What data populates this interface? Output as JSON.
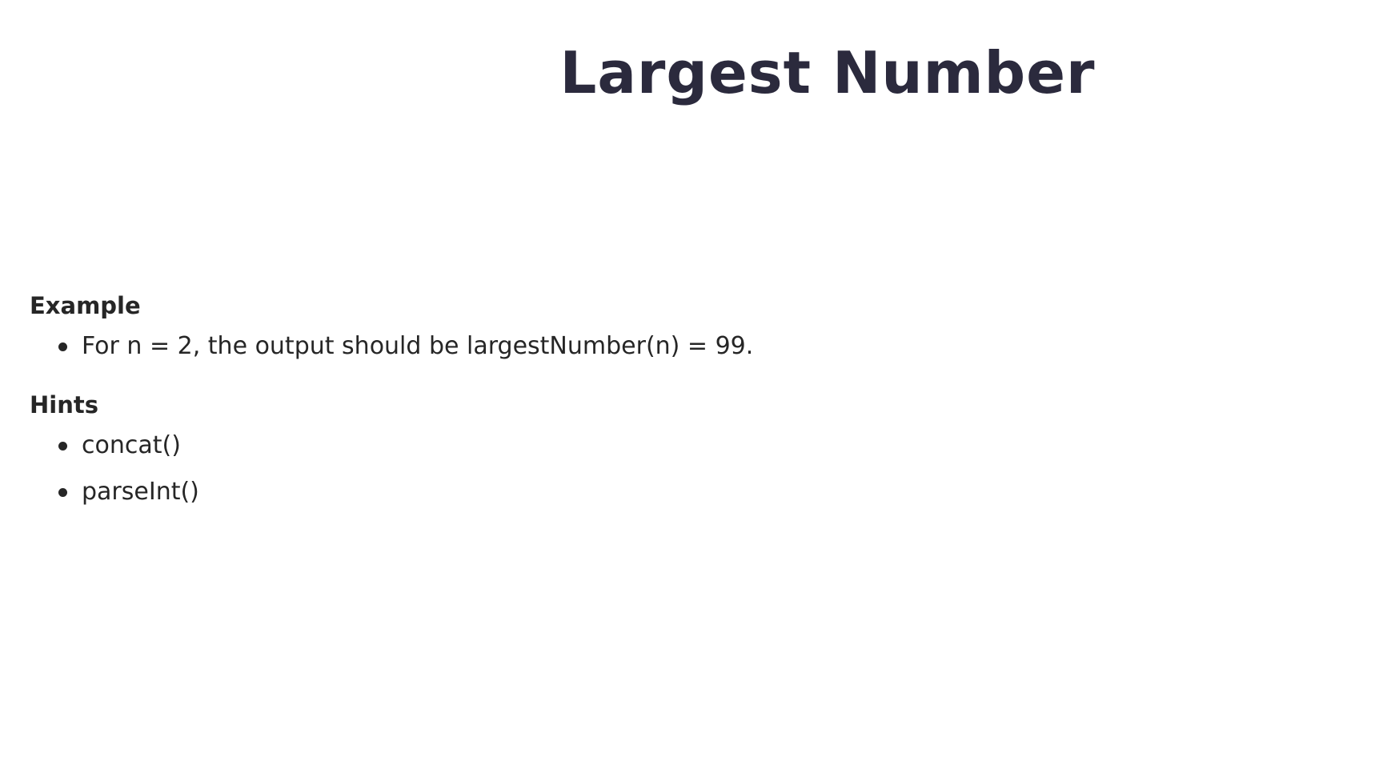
{
  "title": "Largest Number",
  "example": {
    "heading": "Example",
    "items": [
      "For n = 2, the output should be largestNumber(n) = 99."
    ]
  },
  "hints": {
    "heading": "Hints",
    "items": [
      "concat()",
      "parseInt()"
    ]
  },
  "colors": {
    "title": "#2b2a3d",
    "text": "#262626",
    "background": "#ffffff"
  }
}
